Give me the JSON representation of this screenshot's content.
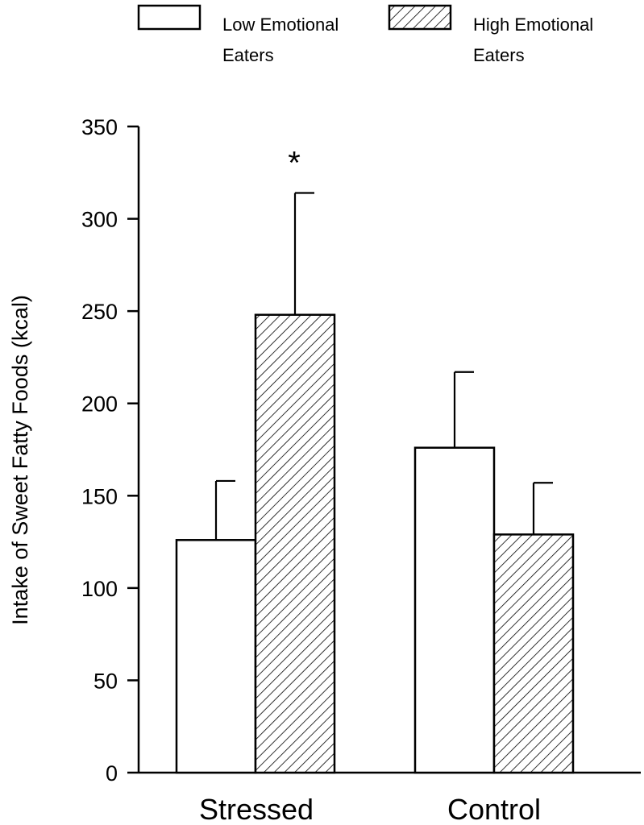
{
  "chart_data": {
    "type": "bar",
    "categories": [
      "Stressed",
      "Control"
    ],
    "series": [
      {
        "name": "Low Emotional Eaters",
        "name_lines": [
          "Low Emotional",
          "Eaters"
        ],
        "pattern": "solid-white",
        "values": [
          126,
          176
        ],
        "errors": [
          32,
          41
        ]
      },
      {
        "name": "High Emotional Eaters",
        "name_lines": [
          "High Emotional",
          "Eaters"
        ],
        "pattern": "diagonal-hatch",
        "values": [
          248,
          129
        ],
        "errors": [
          66,
          28
        ]
      }
    ],
    "ylabel": "Intake of Sweet Fatty Foods (kcal)",
    "xlabel": "",
    "ylim": [
      0,
      350
    ],
    "yticks": [
      0,
      50,
      100,
      150,
      200,
      250,
      300,
      350
    ],
    "ytick_labels": [
      "0",
      "50",
      "100",
      "150",
      "200",
      "250",
      "300",
      "350"
    ],
    "annotations": [
      {
        "text": "*",
        "category": "Stressed",
        "series": "High Emotional Eaters"
      }
    ],
    "legend_position": "top",
    "grid": false,
    "colors": {
      "bar_fill": "#ffffff",
      "stroke": "#000000",
      "hatch": "#000000"
    }
  }
}
